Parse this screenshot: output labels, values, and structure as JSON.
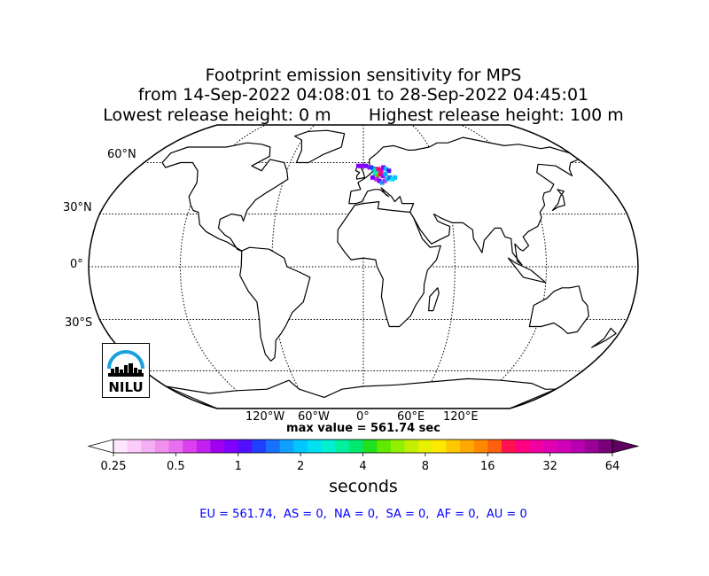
{
  "title": {
    "line1": "Footprint emission sensitivity for MPS",
    "line2": "from 14-Sep-2022 04:08:01 to 28-Sep-2022 04:45:01",
    "line3": "Lowest release height: 0 m       Highest release height: 100 m"
  },
  "map": {
    "projection": "robinson",
    "lat_labels": [
      "60°N",
      "30°N",
      "0°",
      "30°S"
    ],
    "lon_labels": [
      "120°W",
      "60°W",
      "0°",
      "60°E",
      "120°E"
    ],
    "max_label": "max value = 561.74 sec",
    "footprint_region": "Europe"
  },
  "colorbar": {
    "tick_labels": [
      "0.25",
      "0.5",
      "1",
      "2",
      "4",
      "8",
      "16",
      "32",
      "64"
    ],
    "units_label": "seconds",
    "colors": [
      "#ffe6ff",
      "#fbccfb",
      "#f5b0f5",
      "#ef90ef",
      "#e870ef",
      "#dc40f0",
      "#c020f0",
      "#a000f0",
      "#8000ff",
      "#5010ff",
      "#2040ff",
      "#1870ff",
      "#10a0ff",
      "#00c8ff",
      "#00e0f0",
      "#00f0d0",
      "#00f0a0",
      "#00e870",
      "#20e020",
      "#60e800",
      "#90f000",
      "#c0f000",
      "#e8f000",
      "#ffe800",
      "#ffc800",
      "#ffa800",
      "#ff8800",
      "#ff6010",
      "#ff1050",
      "#ff0080",
      "#f000a0",
      "#e000b0",
      "#d000b8",
      "#b800b0",
      "#9a0098",
      "#780078"
    ],
    "under_color": "#ffffff",
    "over_color": "#600060"
  },
  "stats": {
    "text": "EU = 561.74,  AS = 0,  NA = 0,  SA = 0,  AF = 0,  AU = 0",
    "color": "#0000ff"
  },
  "logo": {
    "text": "NILU",
    "accent_color": "#1aa0e0"
  }
}
